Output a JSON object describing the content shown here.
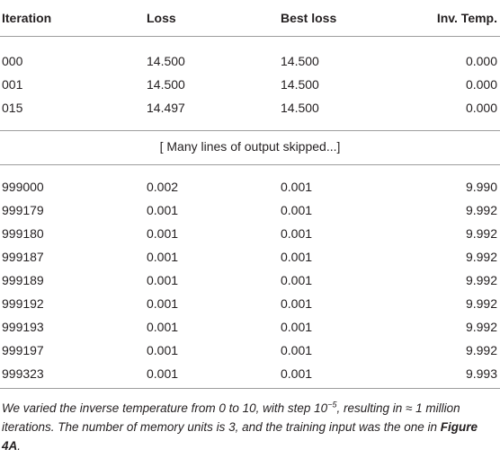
{
  "table": {
    "header": [
      "Iteration",
      "Loss",
      "Best loss",
      "Inv. Temp."
    ],
    "rows_top": [
      [
        "000",
        "14.500",
        "14.500",
        "0.000"
      ],
      [
        "001",
        "14.500",
        "14.500",
        "0.000"
      ],
      [
        "015",
        "14.497",
        "14.500",
        "0.000"
      ]
    ],
    "note": "[ Many lines of output skipped...]",
    "rows_bottom": [
      [
        "999000",
        "0.002",
        "0.001",
        "9.990"
      ],
      [
        "999179",
        "0.001",
        "0.001",
        "9.992"
      ],
      [
        "999180",
        "0.001",
        "0.001",
        "9.992"
      ],
      [
        "999187",
        "0.001",
        "0.001",
        "9.992"
      ],
      [
        "999189",
        "0.001",
        "0.001",
        "9.992"
      ],
      [
        "999192",
        "0.001",
        "0.001",
        "9.992"
      ],
      [
        "999193",
        "0.001",
        "0.001",
        "9.992"
      ],
      [
        "999197",
        "0.001",
        "0.001",
        "9.992"
      ],
      [
        "999323",
        "0.001",
        "0.001",
        "9.993"
      ]
    ]
  },
  "caption": [
    "We varied the inverse temperature from 0 to 10, with step 10",
    "−5",
    ", resulting in ≈ 1 million iterations. The number of memory units is 3, and the training input was the one in ",
    "Figure 4A",
    "."
  ]
}
